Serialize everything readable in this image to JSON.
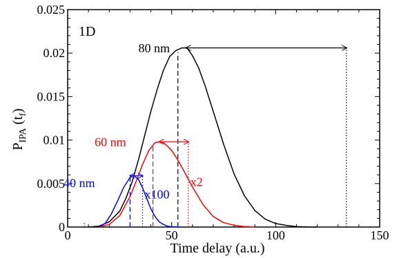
{
  "chart_data": {
    "type": "line",
    "panel_label": "1D",
    "xlabel": "Time delay (a.u.)",
    "ylabel_main": "P",
    "ylabel_sub": "IPA",
    "ylabel_paren": " (t",
    "ylabel_tsub": "f",
    "ylabel_close": ")",
    "xlim": [
      0,
      150
    ],
    "ylim": [
      0,
      0.025
    ],
    "xticks": [
      0,
      50,
      100,
      150
    ],
    "xtick_labels": [
      "0",
      "50",
      "100",
      "150"
    ],
    "yticks": [
      0,
      0.005,
      0.01,
      0.015,
      0.02,
      0.025
    ],
    "ytick_labels": [
      "0",
      "0.005",
      "0.01",
      "0.015",
      "0.02",
      "0.025"
    ],
    "colors": {
      "80nm": "#000000",
      "60nm": "#ff0000",
      "40nm": "#0000ff"
    },
    "series": [
      {
        "name": "80 nm",
        "color": "#000000",
        "x": [
          10,
          15,
          20,
          25,
          28,
          31,
          34,
          37,
          40,
          43,
          46,
          49,
          52,
          55,
          57,
          58,
          60,
          63,
          66,
          70,
          75,
          80,
          85,
          90,
          95,
          100,
          105,
          110,
          115,
          120
        ],
        "y": [
          0,
          0.0001,
          0.0006,
          0.0018,
          0.0033,
          0.0052,
          0.0077,
          0.0105,
          0.0133,
          0.0158,
          0.018,
          0.0196,
          0.0203,
          0.0206,
          0.0206,
          0.0204,
          0.0197,
          0.0183,
          0.0163,
          0.0133,
          0.0095,
          0.0061,
          0.0036,
          0.0019,
          0.0009,
          0.0004,
          0.0002,
          5e-05,
          1e-05,
          0
        ]
      },
      {
        "name": "60 nm",
        "color": "#ff0000",
        "x": [
          15,
          20,
          25,
          30,
          33,
          36,
          39,
          42,
          44,
          46,
          48,
          50,
          53,
          56,
          60,
          65,
          70,
          75,
          80,
          85,
          90
        ],
        "y": [
          0,
          0.0003,
          0.0013,
          0.0035,
          0.0053,
          0.0072,
          0.0088,
          0.0097,
          0.0098,
          0.0097,
          0.0093,
          0.0088,
          0.0077,
          0.0064,
          0.0046,
          0.0026,
          0.0012,
          0.0005,
          0.0002,
          5e-05,
          0
        ]
      },
      {
        "name": "40 nm",
        "color": "#0000ff",
        "x": [
          15,
          18,
          21,
          24,
          27,
          30,
          31,
          32,
          34,
          36,
          38,
          40,
          42,
          44,
          46,
          48,
          50,
          52,
          55
        ],
        "y": [
          0,
          0.0004,
          0.0015,
          0.003,
          0.0046,
          0.0057,
          0.0059,
          0.0059,
          0.0055,
          0.0045,
          0.0033,
          0.0021,
          0.0012,
          0.0006,
          0.0003,
          0.0001,
          3e-05,
          1e-05,
          0
        ]
      }
    ],
    "vlines": [
      {
        "x": 8,
        "y_top": 0.0005,
        "color": "#000000",
        "style": "dotted"
      },
      {
        "x": 53,
        "y_top": 0.0201,
        "color": "#000000",
        "style": "dashed"
      },
      {
        "x": 134,
        "y_top": 0.0206,
        "color": "#000000",
        "style": "dotted"
      },
      {
        "x": 41,
        "y_top": 0.0096,
        "color": "#ff0000",
        "style": "dashed"
      },
      {
        "x": 58,
        "y_top": 0.0098,
        "color": "#ff0000",
        "style": "dotted"
      },
      {
        "x": 30,
        "y_top": 0.0059,
        "color": "#0000ff",
        "style": "dashed"
      },
      {
        "x": 36,
        "y_top": 0.0059,
        "color": "#0000ff",
        "style": "dotted"
      }
    ],
    "arrows": [
      {
        "x1": 57,
        "x2": 134,
        "y": 0.0206,
        "color": "#000000"
      },
      {
        "x1": 44,
        "x2": 58,
        "y": 0.0098,
        "color": "#ff0000"
      },
      {
        "x1": 30,
        "x2": 36,
        "y": 0.0059,
        "color": "#0000ff"
      }
    ],
    "annotations": [
      {
        "text": "80 nm",
        "x": 34,
        "y": 0.0201,
        "color": "#000000"
      },
      {
        "text": "60 nm",
        "x": 13,
        "y": 0.0093,
        "color": "#ff0000"
      },
      {
        "text": "40 nm",
        "x": -2,
        "y": 0.0046,
        "color": "#0000ff"
      },
      {
        "text": "x100",
        "x": 37,
        "y": 0.0033,
        "color": "#0000ff"
      },
      {
        "text": "x2",
        "x": 59,
        "y": 0.0047,
        "color": "#ff0000"
      }
    ]
  }
}
